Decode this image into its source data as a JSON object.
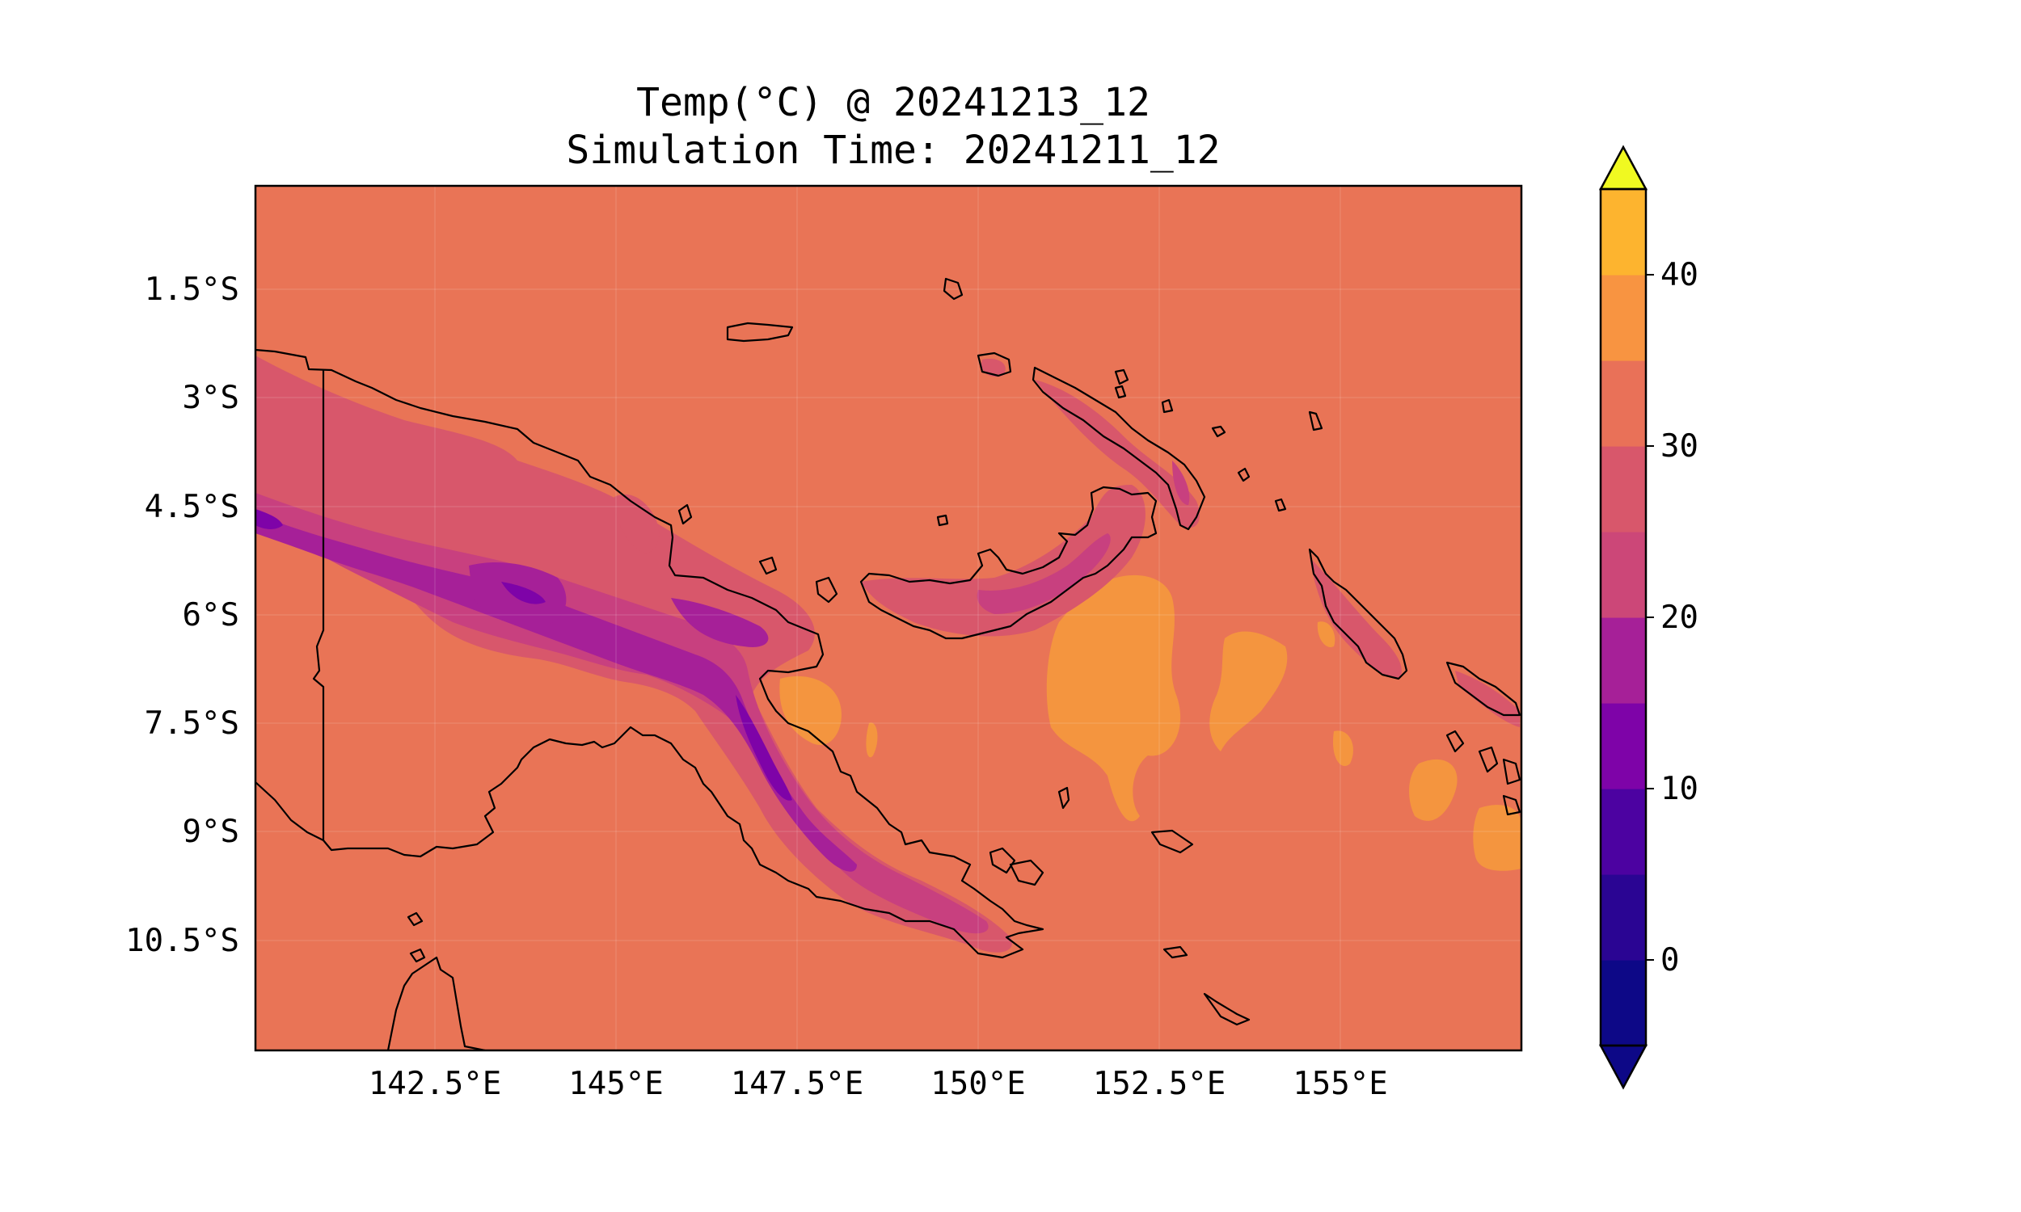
{
  "map": {
    "title_line1": "Temp(°C) @ 20241213_12",
    "title_line2": "Simulation Time: 20241211_12",
    "lon_ticks": [
      "142.5°E",
      "145°E",
      "147.5°E",
      "150°E",
      "152.5°E",
      "155°E"
    ],
    "lat_ticks": [
      "1.5°S",
      "3°S",
      "4.5°S",
      "6°S",
      "7.5°S",
      "9°S",
      "10.5°S"
    ],
    "colorbar": {
      "tick_labels": [
        "40",
        "30",
        "20",
        "10",
        "0"
      ],
      "levels": [
        -5,
        0,
        5,
        10,
        15,
        20,
        25,
        30,
        35,
        40,
        45
      ],
      "colors": [
        "#0d0887",
        "#2a0593",
        "#4c02a1",
        "#7e03a8",
        "#a62098",
        "#cc4778",
        "#d8576b",
        "#e97158",
        "#f89441",
        "#fdb42f",
        "#f0f921"
      ],
      "extend": "both",
      "under_color": "#0d0887",
      "over_color": "#f0f921"
    },
    "field_colors": {
      "background": "#e97456",
      "level_15_20": "#c8407f",
      "level_20_25": "#d8576b",
      "level_10_15": "#a62098",
      "level_5_10": "#7e03a8",
      "level_30_35": "#f4953f"
    }
  }
}
